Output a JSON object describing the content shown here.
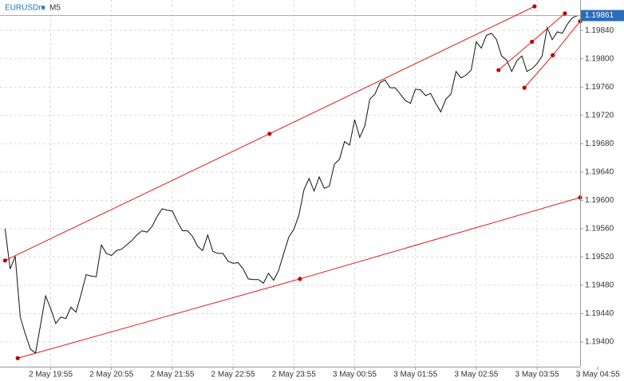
{
  "chart_data": {
    "type": "line",
    "symbol": "EURUSDm",
    "timeframe": "M5",
    "color": "#111111",
    "current_price_color": "#2b6cb8",
    "values": [
      1.1956,
      1.19503,
      1.19521,
      1.19435,
      1.19411,
      1.1939,
      1.19384,
      1.19424,
      1.19465,
      1.19447,
      1.19426,
      1.19435,
      1.19433,
      1.19449,
      1.19442,
      1.19467,
      1.19495,
      1.19493,
      1.19492,
      1.19537,
      1.19525,
      1.19522,
      1.19529,
      1.19531,
      1.19537,
      1.19543,
      1.19551,
      1.19557,
      1.19555,
      1.19563,
      1.19577,
      1.19588,
      1.19586,
      1.19585,
      1.1957,
      1.19557,
      1.19557,
      1.19549,
      1.19535,
      1.19529,
      1.19551,
      1.19528,
      1.19525,
      1.19525,
      1.19514,
      1.19511,
      1.19512,
      1.19503,
      1.19489,
      1.19488,
      1.19488,
      1.19483,
      1.19497,
      1.19487,
      1.19501,
      1.19525,
      1.19548,
      1.19559,
      1.19579,
      1.19615,
      1.19631,
      1.19613,
      1.19633,
      1.19617,
      1.1962,
      1.19651,
      1.19658,
      1.19683,
      1.19678,
      1.19714,
      1.19689,
      1.19705,
      1.19743,
      1.1975,
      1.19766,
      1.1977,
      1.19759,
      1.19759,
      1.1975,
      1.19741,
      1.19737,
      1.19757,
      1.19756,
      1.19748,
      1.19751,
      1.19737,
      1.19725,
      1.19743,
      1.1975,
      1.19782,
      1.19773,
      1.19777,
      1.19784,
      1.19824,
      1.19815,
      1.19833,
      1.19836,
      1.19827,
      1.19804,
      1.19798,
      1.19782,
      1.19797,
      1.19804,
      1.19782,
      1.19786,
      1.19793,
      1.19804,
      1.19844,
      1.19827,
      1.19838,
      1.19836,
      1.19849,
      1.19858,
      1.19861
    ],
    "trendlines": [
      {
        "color": "#e31a1c",
        "x": [
          0,
          52.2,
          104.5
        ],
        "values": [
          1.19515,
          1.19694,
          1.19874
        ]
      },
      {
        "color": "#e31a1c",
        "x": [
          2.5,
          58.2,
          113.5
        ],
        "values": [
          1.19377,
          1.19489,
          1.19604
        ]
      },
      {
        "color": "#e31a1c",
        "x": [
          97.4,
          104,
          110.5
        ],
        "values": [
          1.19784,
          1.19824,
          1.19864
        ]
      },
      {
        "color": "#e31a1c",
        "x": [
          102.5,
          108.1,
          113.5
        ],
        "values": [
          1.19759,
          1.19805,
          1.19853
        ]
      }
    ],
    "xlim": [
      -1,
      113.5
    ],
    "ylim": [
      1.19365,
      1.19883
    ],
    "xticks": [
      {
        "value": 9,
        "label": "2 May 19:55"
      },
      {
        "value": 21,
        "label": "2 May 20:55"
      },
      {
        "value": 33,
        "label": "2 May 21:55"
      },
      {
        "value": 45,
        "label": "2 May 22:55"
      },
      {
        "value": 57,
        "label": "2 May 23:55"
      },
      {
        "value": 69,
        "label": "3 May 00:55"
      },
      {
        "value": 81,
        "label": "3 May 01:55"
      },
      {
        "value": 93,
        "label": "3 May 02:55"
      },
      {
        "value": 105,
        "label": "3 May 03:55"
      },
      {
        "value": 117,
        "label": "3 May 04:55"
      }
    ],
    "yticks": [
      {
        "value": 1.1984,
        "label": "1.19840"
      },
      {
        "value": 1.198,
        "label": "1.19800"
      },
      {
        "value": 1.1976,
        "label": "1.19760"
      },
      {
        "value": 1.1972,
        "label": "1.19720"
      },
      {
        "value": 1.1968,
        "label": "1.19680"
      },
      {
        "value": 1.1964,
        "label": "1.19640"
      },
      {
        "value": 1.196,
        "label": "1.19600"
      },
      {
        "value": 1.1956,
        "label": "1.19560"
      },
      {
        "value": 1.1952,
        "label": "1.19520"
      },
      {
        "value": 1.1948,
        "label": "1.19480"
      },
      {
        "value": 1.1944,
        "label": "1.19440"
      },
      {
        "value": 1.194,
        "label": "1.19400"
      }
    ],
    "grid": true
  }
}
